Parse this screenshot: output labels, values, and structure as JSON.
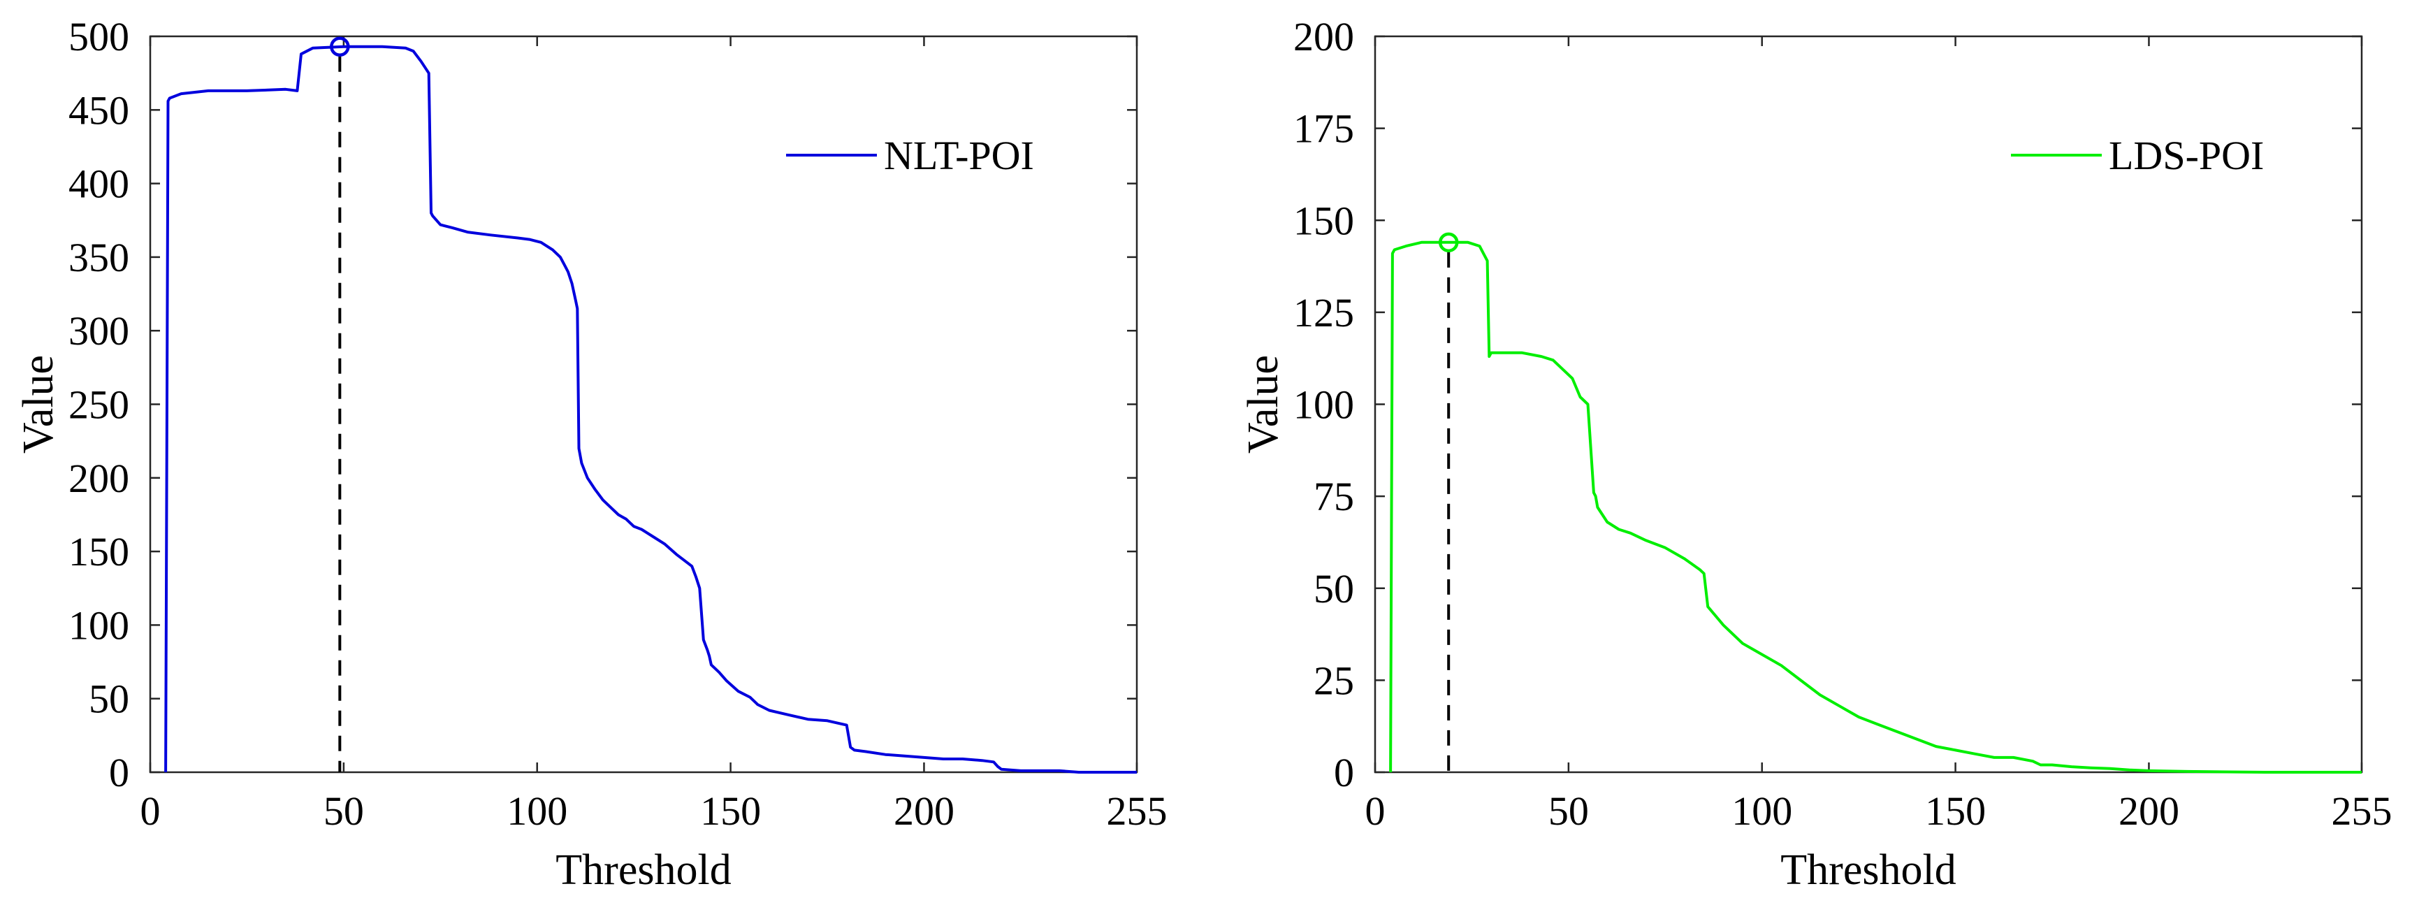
{
  "chart_data": [
    {
      "type": "line",
      "xlabel": "Threshold",
      "ylabel": "Value",
      "xlim": [
        0,
        255
      ],
      "ylim": [
        0,
        500
      ],
      "xticks": [
        "0",
        "50",
        "100",
        "150",
        "200",
        "255"
      ],
      "yticks": [
        "0",
        "50",
        "100",
        "150",
        "200",
        "250",
        "300",
        "350",
        "400",
        "450",
        "500"
      ],
      "grid": false,
      "legend_position": "top-right",
      "series": [
        {
          "name": "NLT-POI",
          "color": "#0000dd",
          "x": [
            4,
            4.6,
            5,
            8,
            15,
            25,
            35,
            38,
            39,
            42,
            50,
            60,
            66,
            68,
            70,
            72,
            72.6,
            73,
            75,
            78,
            82,
            88,
            95,
            98,
            101,
            104,
            106,
            107,
            108,
            109,
            110,
            110.4,
            110.8,
            111.5,
            113,
            115,
            117,
            119,
            121,
            123,
            125,
            127,
            130,
            133,
            136,
            138,
            140,
            141,
            142,
            143,
            144,
            144.5,
            145,
            147,
            149,
            152,
            155,
            157,
            160,
            165,
            170,
            175,
            180,
            181,
            182,
            185,
            190,
            195,
            200,
            205,
            210,
            215,
            218,
            219,
            220,
            225,
            230,
            235,
            240,
            245,
            250,
            255
          ],
          "y": [
            0,
            456,
            458,
            461,
            463,
            463,
            464,
            463,
            488,
            492,
            493,
            493,
            492,
            490,
            483,
            475,
            380,
            378,
            372,
            370,
            367,
            365,
            363,
            362,
            360,
            355,
            350,
            345,
            340,
            332,
            320,
            315,
            220,
            210,
            200,
            192,
            185,
            180,
            175,
            172,
            167,
            165,
            160,
            155,
            148,
            144,
            140,
            133,
            125,
            90,
            83,
            79,
            73,
            68,
            62,
            55,
            51,
            46,
            42,
            39,
            36,
            35,
            32,
            17,
            15,
            14,
            12,
            11,
            10,
            9,
            9,
            8,
            7,
            4,
            2,
            1,
            1,
            1,
            0,
            0,
            0,
            0
          ],
          "marker": {
            "x": 49,
            "y": 493
          },
          "dashed_x": 49
        }
      ]
    },
    {
      "type": "line",
      "xlabel": "Threshold",
      "ylabel": "Value",
      "xlim": [
        0,
        255
      ],
      "ylim": [
        0,
        200
      ],
      "xticks": [
        "0",
        "50",
        "100",
        "150",
        "200",
        "255"
      ],
      "yticks": [
        "0",
        "25",
        "50",
        "75",
        "100",
        "125",
        "150",
        "175",
        "200"
      ],
      "grid": false,
      "legend_position": "top-right",
      "series": [
        {
          "name": "LDS-POI",
          "color": "#00ee00",
          "x": [
            4,
            4.5,
            5,
            8,
            12,
            18,
            24,
            27,
            28,
            29,
            29.5,
            30,
            33,
            38,
            43,
            46,
            48,
            51,
            53,
            55,
            56.5,
            57,
            57.5,
            60,
            63,
            66,
            70,
            75,
            80,
            84,
            85,
            86,
            90,
            95,
            100,
            105,
            110,
            115,
            120,
            125,
            130,
            135,
            140,
            145,
            150,
            155,
            160,
            165,
            170,
            172,
            175,
            180,
            185,
            190,
            195,
            200,
            210,
            220,
            230,
            240,
            255
          ],
          "y": [
            0,
            141,
            142,
            143,
            144,
            144,
            144,
            143,
            141,
            139,
            113,
            114,
            114,
            114,
            113,
            112,
            110,
            107,
            102,
            100,
            76,
            75,
            72,
            68,
            66,
            65,
            63,
            61,
            58,
            55,
            54,
            45,
            40,
            35,
            32,
            29,
            25,
            21,
            18,
            15,
            13,
            11,
            9,
            7,
            6,
            5,
            4,
            4,
            3,
            2,
            2,
            1.5,
            1.2,
            1,
            0.6,
            0.4,
            0.2,
            0.1,
            0,
            0,
            0
          ],
          "marker": {
            "x": 19,
            "y": 144
          },
          "dashed_x": 19
        }
      ]
    }
  ]
}
